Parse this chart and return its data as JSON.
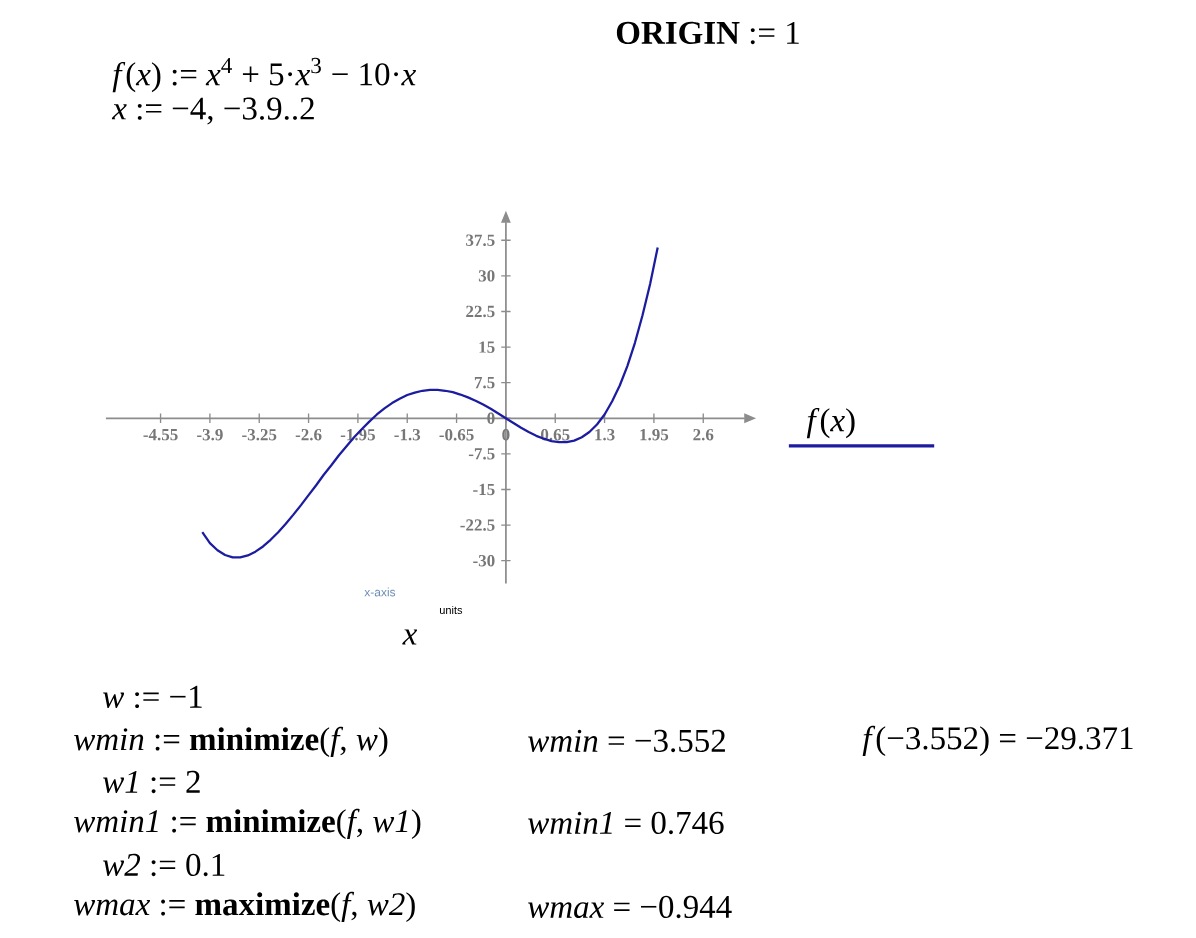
{
  "chart_data": {
    "type": "line",
    "xlabel": "x",
    "x": [
      -4,
      -3.9,
      -3.8,
      -3.7,
      -3.6,
      -3.5,
      -3.4,
      -3.3,
      -3.2,
      -3.1,
      -3,
      -2.9,
      -2.8,
      -2.7,
      -2.6,
      -2.5,
      -2.4,
      -2.3,
      -2.2,
      -2.1,
      -2,
      -1.9,
      -1.8,
      -1.7,
      -1.6,
      -1.5,
      -1.4,
      -1.3,
      -1.2,
      -1.1,
      -1,
      -0.9,
      -0.8,
      -0.7,
      -0.6,
      -0.5,
      -0.4,
      -0.3,
      -0.2,
      -0.1,
      0,
      0.1,
      0.2,
      0.3,
      0.4,
      0.5,
      0.6,
      0.7,
      0.8,
      0.9,
      1,
      1.1,
      1.2,
      1.3,
      1.4,
      1.5,
      1.6,
      1.7,
      1.8,
      1.9,
      2
    ],
    "series": [
      {
        "name": "*f*(*x*)",
        "color": "#1c1ca0",
        "values": [
          -24,
          -26.3,
          -27.8,
          -28.8,
          -29.3,
          -29.3,
          -28.9,
          -28.1,
          -27,
          -25.6,
          -24,
          -22.2,
          -20.3,
          -18.3,
          -16.2,
          -14.1,
          -11.9,
          -9.9,
          -7.8,
          -5.9,
          -4,
          -2.3,
          -0.7,
          0.8,
          2.1,
          3.2,
          4.1,
          4.9,
          5.4,
          5.8,
          6,
          6,
          5.8,
          5.5,
          5,
          4.4,
          3.7,
          2.9,
          2,
          1,
          0,
          -1,
          -2,
          -2.9,
          -3.7,
          -4.3,
          -4.8,
          -5,
          -5,
          -4.7,
          -4,
          -2.9,
          -1.3,
          0.8,
          3.6,
          6.9,
          11,
          15.9,
          21.7,
          28.3,
          36
        ]
      }
    ],
    "xlim": [
      -5.27,
      3.14
    ],
    "ylim": [
      -34.8,
      41.2
    ],
    "xticks": [
      -4.55,
      -3.9,
      -3.25,
      -2.6,
      -1.95,
      -1.3,
      -0.65,
      0,
      0.65,
      1.3,
      1.95,
      2.6
    ],
    "yticks": [
      -30,
      -22.5,
      -15,
      -7.5,
      0,
      7.5,
      15,
      22.5,
      30,
      37.5
    ],
    "legend": "right",
    "line_style": "solid",
    "annotations": [
      "**ORIGIN** := 1",
      "*f*(*x*) := *x*$^{4}$ + 5·*x*$^{3}$ − 10·*x*",
      "*x* := −4, −3.9..2",
      "*w* := −1",
      "*wmin* := **minimize**(*f*, *w*)",
      "*wmin* = −3.552",
      "*f*(−3.552) = −29.371",
      "*w1* := 2",
      "*wmin1* := **minimize**(*f*, *w1*)",
      "*wmin1* = 0.746",
      "*w2* := 0.1",
      "*wmax* := **maximize**(*f*, *w2*)",
      "*wmax* = −0.944",
      "x-axis",
      "units"
    ]
  }
}
